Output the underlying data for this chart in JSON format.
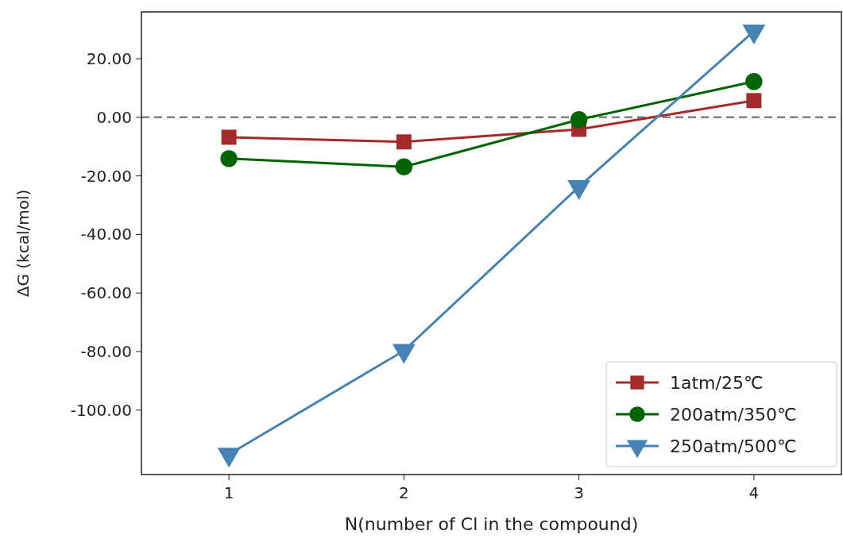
{
  "chart_data": {
    "type": "line",
    "xlabel": "N(number of Cl in the compound)",
    "ylabel": "ΔG (kcal/mol)",
    "x": [
      1,
      2,
      3,
      4
    ],
    "xlim": [
      0.5,
      4.5
    ],
    "xticks": [
      1,
      2,
      3,
      4
    ],
    "ylim": [
      -122,
      36
    ],
    "yticks": [
      {
        "value": -100,
        "label": "-100.00"
      },
      {
        "value": -80,
        "label": "-80.00"
      },
      {
        "value": -60,
        "label": "-60.00"
      },
      {
        "value": -40,
        "label": "-40.00"
      },
      {
        "value": -20,
        "label": "-20.00"
      },
      {
        "value": 0,
        "label": "0.00"
      },
      {
        "value": 20,
        "label": "20.00"
      }
    ],
    "grid": false,
    "legend": "bottom right",
    "ref_lines": [
      {
        "axis": "y",
        "value": 0,
        "color": "#808080",
        "line_style": "dashed"
      }
    ],
    "series": [
      {
        "name": "1atm/25℃",
        "color": "#a52a2a",
        "marker": "square",
        "values": [
          -6.8,
          -8.4,
          -4.1,
          5.7
        ]
      },
      {
        "name": "200atm/350℃",
        "color": "#006400",
        "marker": "circle",
        "values": [
          -14.1,
          -16.9,
          -0.8,
          12.2
        ]
      },
      {
        "name": "250atm/500℃",
        "color": "#4682b4",
        "marker": "triangle",
        "values": [
          -115.1,
          -79.7,
          -23.7,
          29.4
        ]
      }
    ]
  }
}
